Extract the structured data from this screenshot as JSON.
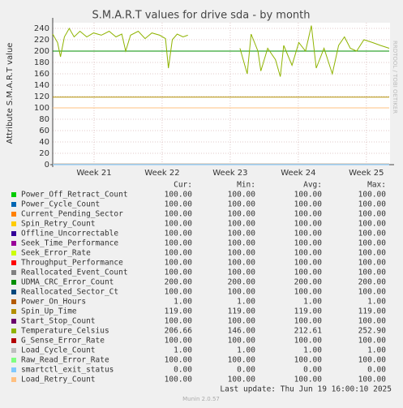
{
  "chart_data": {
    "type": "line",
    "title": "S.M.A.R.T values for drive sda - by month",
    "y_label": "Attribute S.M.A.R.T value",
    "side_text": "RRDTOOL / TOBI OETIKER",
    "xlim": [
      0,
      34.6
    ],
    "xticks": [
      {
        "value": 4.25,
        "label": "Week 21"
      },
      {
        "value": 11.25,
        "label": "Week 22"
      },
      {
        "value": 18.25,
        "label": "Week 23"
      },
      {
        "value": 25.25,
        "label": "Week 24"
      },
      {
        "value": 32.25,
        "label": "Week 25"
      }
    ],
    "ylim": [
      0,
      250
    ],
    "yticks": [
      0,
      20,
      40,
      60,
      80,
      100,
      120,
      140,
      160,
      180,
      200,
      220,
      240
    ],
    "grid": true,
    "stats_headers": [
      "Cur:",
      "Min:",
      "Avg:",
      "Max:"
    ],
    "series": [
      {
        "name": "Power_Off_Retract_Count",
        "color": "#00cc00",
        "x": [
          0,
          34.6
        ],
        "values": [
          100,
          100
        ],
        "stats": [
          "100.00",
          "100.00",
          "100.00",
          "100.00"
        ]
      },
      {
        "name": "Power_Cycle_Count",
        "color": "#0066b3",
        "x": [
          0,
          34.6
        ],
        "values": [
          100,
          100
        ],
        "stats": [
          "100.00",
          "100.00",
          "100.00",
          "100.00"
        ]
      },
      {
        "name": "Current_Pending_Sector",
        "color": "#ff8000",
        "x": [
          0,
          34.6
        ],
        "values": [
          100,
          100
        ],
        "stats": [
          "100.00",
          "100.00",
          "100.00",
          "100.00"
        ]
      },
      {
        "name": "Spin_Retry_Count",
        "color": "#ffcc00",
        "x": [
          0,
          34.6
        ],
        "values": [
          100,
          100
        ],
        "stats": [
          "100.00",
          "100.00",
          "100.00",
          "100.00"
        ]
      },
      {
        "name": "Offline_Uncorrectable",
        "color": "#330099",
        "x": [
          0,
          34.6
        ],
        "values": [
          100,
          100
        ],
        "stats": [
          "100.00",
          "100.00",
          "100.00",
          "100.00"
        ]
      },
      {
        "name": "Seek_Time_Performance",
        "color": "#990099",
        "x": [
          0,
          34.6
        ],
        "values": [
          100,
          100
        ],
        "stats": [
          "100.00",
          "100.00",
          "100.00",
          "100.00"
        ]
      },
      {
        "name": "Seek_Error_Rate",
        "color": "#ccff00",
        "x": [
          0,
          34.6
        ],
        "values": [
          100,
          100
        ],
        "stats": [
          "100.00",
          "100.00",
          "100.00",
          "100.00"
        ]
      },
      {
        "name": "Throughput_Performance",
        "color": "#ff0000",
        "x": [
          0,
          34.6
        ],
        "values": [
          100,
          100
        ],
        "stats": [
          "100.00",
          "100.00",
          "100.00",
          "100.00"
        ]
      },
      {
        "name": "Reallocated_Event_Count",
        "color": "#808080",
        "x": [
          0,
          34.6
        ],
        "values": [
          100,
          100
        ],
        "stats": [
          "100.00",
          "100.00",
          "100.00",
          "100.00"
        ]
      },
      {
        "name": "UDMA_CRC_Error_Count",
        "color": "#008f00",
        "x": [
          0,
          34.6
        ],
        "values": [
          200,
          200
        ],
        "stats": [
          "200.00",
          "200.00",
          "200.00",
          "200.00"
        ]
      },
      {
        "name": "Reallocated_Sector_Ct",
        "color": "#00487d",
        "x": [
          0,
          34.6
        ],
        "values": [
          100,
          100
        ],
        "stats": [
          "100.00",
          "100.00",
          "100.00",
          "100.00"
        ]
      },
      {
        "name": "Power_On_Hours",
        "color": "#b35a00",
        "x": [
          0,
          34.6
        ],
        "values": [
          1,
          1
        ],
        "stats": [
          "1.00",
          "1.00",
          "1.00",
          "1.00"
        ]
      },
      {
        "name": "Spin_Up_Time",
        "color": "#b38f00",
        "x": [
          0,
          34.6
        ],
        "values": [
          119,
          119
        ],
        "stats": [
          "119.00",
          "119.00",
          "119.00",
          "119.00"
        ]
      },
      {
        "name": "Start_Stop_Count",
        "color": "#6b006b",
        "x": [
          0,
          34.6
        ],
        "values": [
          100,
          100
        ],
        "stats": [
          "100.00",
          "100.00",
          "100.00",
          "100.00"
        ]
      },
      {
        "name": "Temperature_Celsius",
        "color": "#8fb300",
        "x": [
          0,
          0.5,
          0.8,
          1.2,
          1.7,
          2.2,
          2.8,
          3.5,
          4.2,
          5,
          5.8,
          6.5,
          7.1,
          7.5,
          8,
          8.8,
          9.5,
          10.2,
          11,
          11.6,
          11.9,
          12.3,
          12.8,
          13.4,
          13.9,
          14.5,
          19.25,
          20,
          20.4,
          21.1,
          21.4,
          22.1,
          22.9,
          23.4,
          23.75,
          24.6,
          25.3,
          26,
          26.6,
          27.1,
          27.9,
          28.75,
          29.4,
          30,
          30.6,
          31.25,
          32,
          32.9,
          33.7,
          34.6
        ],
        "values": [
          230,
          215,
          190,
          225,
          240,
          225,
          235,
          225,
          232,
          228,
          235,
          225,
          230,
          200,
          228,
          235,
          222,
          232,
          228,
          222,
          170,
          220,
          230,
          225,
          228,
          null,
          205,
          160,
          230,
          200,
          165,
          205,
          185,
          155,
          210,
          175,
          215,
          200,
          245,
          170,
          205,
          160,
          210,
          225,
          205,
          200,
          220,
          215,
          210,
          205
        ],
        "stats": [
          "206.66",
          "146.00",
          "212.61",
          "252.90"
        ]
      },
      {
        "name": "G_Sense_Error_Rate",
        "color": "#b30000",
        "x": [
          0,
          34.6
        ],
        "values": [
          100,
          100
        ],
        "stats": [
          "100.00",
          "100.00",
          "100.00",
          "100.00"
        ]
      },
      {
        "name": "Load_Cycle_Count",
        "color": "#bebebe",
        "x": [
          0,
          34.6
        ],
        "values": [
          1,
          1
        ],
        "stats": [
          "1.00",
          "1.00",
          "1.00",
          "1.00"
        ]
      },
      {
        "name": "Raw_Read_Error_Rate",
        "color": "#80ff80",
        "x": [
          0,
          34.6
        ],
        "values": [
          100,
          100
        ],
        "stats": [
          "100.00",
          "100.00",
          "100.00",
          "100.00"
        ]
      },
      {
        "name": "smartctl_exit_status",
        "color": "#80c9ff",
        "x": [
          0,
          34.6
        ],
        "values": [
          0,
          0
        ],
        "stats": [
          "0.00",
          "0.00",
          "0.00",
          "0.00"
        ]
      },
      {
        "name": "Load_Retry_Count",
        "color": "#ffc080",
        "x": [
          0,
          34.6
        ],
        "values": [
          100,
          100
        ],
        "stats": [
          "100.00",
          "100.00",
          "100.00",
          "100.00"
        ]
      }
    ],
    "last_update": "Last update: Thu Jun 19 16:00:10 2025",
    "version": "Munin 2.0.57"
  }
}
